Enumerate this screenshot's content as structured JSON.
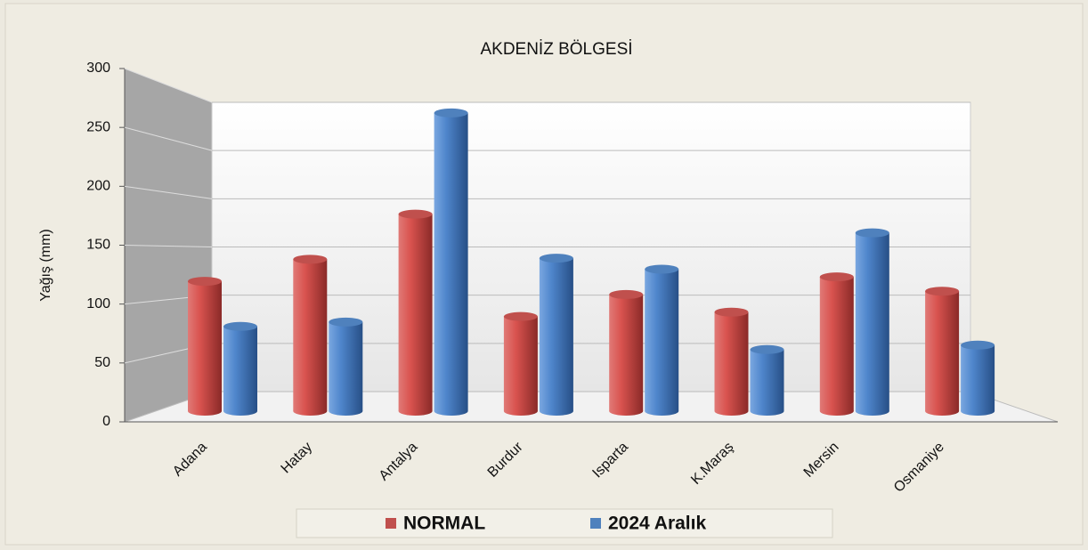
{
  "chart_data": {
    "type": "bar",
    "title": "AKDENİZ BÖLGESİ",
    "y_label": "Yağış (mm)",
    "categories": [
      "Adana",
      "Hatay",
      "Antalya",
      "Burdur",
      "Isparta",
      "K.Maraş",
      "Mersin",
      "Osmaniye"
    ],
    "series": [
      {
        "name": "NORMAL",
        "color": "#c0504d",
        "values": [
          118,
          138,
          179,
          86,
          106,
          90,
          122,
          109
        ]
      },
      {
        "name": "2024  Aralık",
        "color": "#4f81bd",
        "values": [
          77,
          81,
          271,
          139,
          129,
          56,
          162,
          60
        ]
      }
    ],
    "ylim": [
      0,
      300
    ],
    "yticks": [
      0,
      50,
      100,
      150,
      200,
      250,
      300
    ],
    "grid": true
  }
}
